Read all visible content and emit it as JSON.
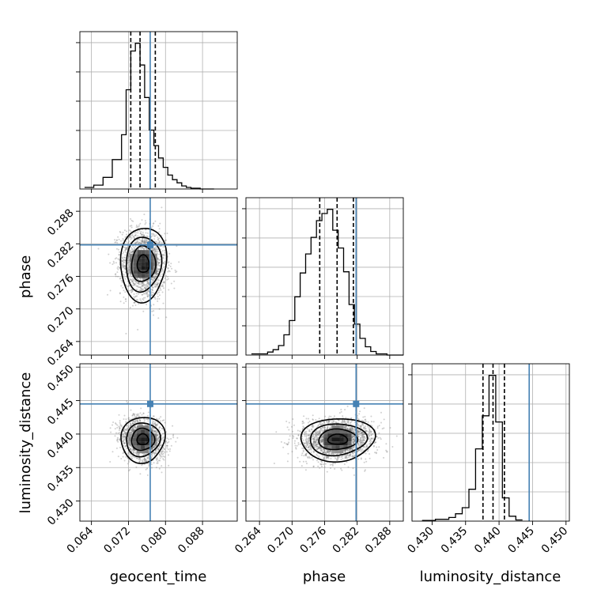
{
  "chart_data": {
    "type": "corner",
    "parameters": [
      "geocent_time",
      "phase",
      "luminosity_distance"
    ],
    "axis_labels": {
      "geocent_time": "geocent_time",
      "phase": "phase",
      "luminosity_distance": "luminosity_distance"
    },
    "ranges": {
      "geocent_time": [
        0.0615,
        0.0955
      ],
      "phase": [
        0.2615,
        0.2905
      ],
      "luminosity_distance": [
        0.427,
        0.4505
      ]
    },
    "ticks": {
      "geocent_time": [
        "0.064",
        "0.072",
        "0.080",
        "0.088"
      ],
      "phase": [
        "0.264",
        "0.270",
        "0.276",
        "0.282",
        "0.288"
      ],
      "luminosity_distance": [
        "0.430",
        "0.435",
        "0.440",
        "0.445",
        "0.450"
      ]
    },
    "truths": {
      "geocent_time": 0.0767,
      "phase": 0.2818,
      "luminosity_distance": 0.4445
    },
    "quantiles": {
      "geocent_time": [
        0.0725,
        0.0745,
        0.0778
      ],
      "phase": [
        0.2751,
        0.2783,
        0.2813
      ],
      "luminosity_distance": [
        0.4376,
        0.4391,
        0.4408
      ]
    },
    "marginals": {
      "geocent_time": {
        "bin_edges": [
          0.0625,
          0.0645,
          0.0665,
          0.0685,
          0.0705,
          0.0715,
          0.0725,
          0.0735,
          0.0745,
          0.0755,
          0.0765,
          0.0775,
          0.0785,
          0.0795,
          0.0805,
          0.0815,
          0.0825,
          0.0835,
          0.0845,
          0.0855,
          0.0875,
          0.0905
        ],
        "counts": [
          2,
          5,
          15,
          38,
          70,
          128,
          178,
          188,
          160,
          118,
          76,
          56,
          40,
          28,
          18,
          12,
          8,
          4,
          2,
          1,
          0
        ]
      },
      "phase": {
        "bin_edges": [
          0.2625,
          0.2655,
          0.2665,
          0.2675,
          0.2685,
          0.2695,
          0.2705,
          0.2715,
          0.2725,
          0.2735,
          0.2745,
          0.2755,
          0.2765,
          0.2775,
          0.2785,
          0.2795,
          0.2805,
          0.2815,
          0.2825,
          0.2835,
          0.2845,
          0.2855,
          0.2875,
          0.2905
        ],
        "counts": [
          2,
          5,
          9,
          16,
          34,
          58,
          98,
          138,
          170,
          198,
          226,
          238,
          245,
          210,
          180,
          140,
          85,
          52,
          28,
          14,
          6,
          2,
          0
        ]
      },
      "luminosity_distance": {
        "bin_edges": [
          0.4285,
          0.4305,
          0.4325,
          0.4335,
          0.4345,
          0.4355,
          0.4365,
          0.4375,
          0.4385,
          0.4395,
          0.4405,
          0.4415,
          0.4425,
          0.4435
        ],
        "counts": [
          1,
          3,
          6,
          12,
          22,
          52,
          118,
          172,
          238,
          162,
          38,
          8,
          2
        ]
      }
    },
    "joint": {
      "phase_vs_geocent_time": {
        "mean": [
          0.0752,
          0.2783
        ],
        "sigma": [
          0.0024,
          0.0032
        ],
        "rho": -0.1,
        "n_points": 1800
      },
      "luminosity_distance_vs_geocent_time": {
        "mean": [
          0.0751,
          0.4392
        ],
        "sigma": [
          0.0023,
          0.0016
        ],
        "rho": -0.15,
        "n_points": 1800
      },
      "luminosity_distance_vs_phase": {
        "mean": [
          0.2784,
          0.4392
        ],
        "sigma": [
          0.0033,
          0.0015
        ],
        "rho": 0.05,
        "n_points": 2200
      }
    },
    "contour_sigmas": [
      0.5,
      1.0,
      1.5,
      2.0
    ],
    "grid": true,
    "colors": {
      "truth": "#4682b4",
      "contour": "#000000",
      "points": "#777777",
      "grid": "#b0b0b0",
      "histogram": "#000000"
    }
  }
}
